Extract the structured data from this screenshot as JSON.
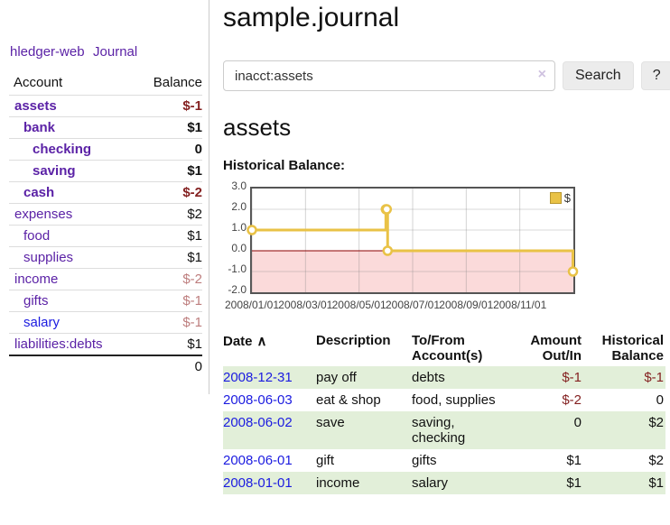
{
  "colors": {
    "link_purple": "#5b22a6",
    "link_blue": "#1b1be0",
    "negative_strong": "#842121",
    "negative_soft": "#bd7d7d",
    "row_stripe_green": "#e2efd9",
    "chart_line_gold": "#e9c246",
    "chart_negative_region_pink": "#fbdada",
    "chart_zero_line_red": "#8b0000"
  },
  "sidebar": {
    "brand": "hledger-web",
    "journal_link": "Journal",
    "table": {
      "headers": {
        "account": "Account",
        "balance": "Balance"
      },
      "rows": [
        {
          "account": "assets",
          "balance": "$-1",
          "depth": 0,
          "bold": true,
          "balance_style": "neg-strong",
          "link_style": "purple"
        },
        {
          "account": "bank",
          "balance": "$1",
          "depth": 1,
          "bold": true,
          "balance_style": "pos",
          "link_style": "purple"
        },
        {
          "account": "checking",
          "balance": "0",
          "depth": 2,
          "bold": true,
          "balance_style": "pos",
          "link_style": "purple"
        },
        {
          "account": "saving",
          "balance": "$1",
          "depth": 2,
          "bold": true,
          "balance_style": "pos",
          "link_style": "purple"
        },
        {
          "account": "cash",
          "balance": "$-2",
          "depth": 1,
          "bold": true,
          "balance_style": "neg-strong",
          "link_style": "purple"
        },
        {
          "account": "expenses",
          "balance": "$2",
          "depth": 0,
          "bold": false,
          "balance_style": "pos",
          "link_style": "purple"
        },
        {
          "account": "food",
          "balance": "$1",
          "depth": 1,
          "bold": false,
          "balance_style": "pos",
          "link_style": "purple"
        },
        {
          "account": "supplies",
          "balance": "$1",
          "depth": 1,
          "bold": false,
          "balance_style": "pos",
          "link_style": "purple"
        },
        {
          "account": "income",
          "balance": "$-2",
          "depth": 0,
          "bold": false,
          "balance_style": "neg-soft",
          "link_style": "purple"
        },
        {
          "account": "gifts",
          "balance": "$-1",
          "depth": 1,
          "bold": false,
          "balance_style": "neg-soft",
          "link_style": "purple"
        },
        {
          "account": "salary",
          "balance": "$-1",
          "depth": 1,
          "bold": false,
          "balance_style": "neg-soft",
          "link_style": "blue"
        },
        {
          "account": "liabilities:debts",
          "balance": "$1",
          "depth": 0,
          "bold": false,
          "balance_style": "pos",
          "link_style": "purple"
        }
      ],
      "total": "0"
    }
  },
  "main": {
    "title": "sample.journal",
    "search": {
      "value": "inacct:assets",
      "clear_icon": "×",
      "button_label": "Search",
      "help_label": "?"
    },
    "account_heading": "assets",
    "chart_label": "Historical Balance:"
  },
  "chart_data": {
    "type": "line",
    "title": "Historical Balance",
    "step": true,
    "series": [
      {
        "name": "$",
        "x": [
          "2008/01/01",
          "2008/06/01",
          "2008/06/02",
          "2008/06/03",
          "2008/12/31"
        ],
        "values": [
          1,
          2,
          2,
          0,
          -1
        ]
      }
    ],
    "ylim": [
      -2,
      3
    ],
    "yticks": [
      "3.0",
      "2.0",
      "1.0",
      "0.0",
      "-1.0",
      "-2.0"
    ],
    "ytick_values": [
      3,
      2,
      1,
      0,
      -1,
      -2
    ],
    "xticks": [
      "2008/01/01",
      "2008/03/01",
      "2008/05/01",
      "2008/07/01",
      "2008/09/01",
      "2008/11/01"
    ],
    "grid": true,
    "legend": {
      "label": "$",
      "position": "top-right"
    },
    "negative_region_shaded": true
  },
  "register": {
    "headers": [
      "Date",
      "Description",
      "To/From Account(s)",
      "Amount Out/In",
      "Historical Balance"
    ],
    "sort_icon": "∧",
    "rows": [
      {
        "date": "2008-12-31",
        "description": "pay off",
        "accounts": "debts",
        "amount": "$-1",
        "balance": "$-1"
      },
      {
        "date": "2008-06-03",
        "description": "eat & shop",
        "accounts": "food, supplies",
        "amount": "$-2",
        "balance": "0"
      },
      {
        "date": "2008-06-02",
        "description": "save",
        "accounts": "saving, checking",
        "amount": "0",
        "balance": "$2"
      },
      {
        "date": "2008-06-01",
        "description": "gift",
        "accounts": "gifts",
        "amount": "$1",
        "balance": "$2"
      },
      {
        "date": "2008-01-01",
        "description": "income",
        "accounts": "salary",
        "amount": "$1",
        "balance": "$1"
      }
    ]
  }
}
